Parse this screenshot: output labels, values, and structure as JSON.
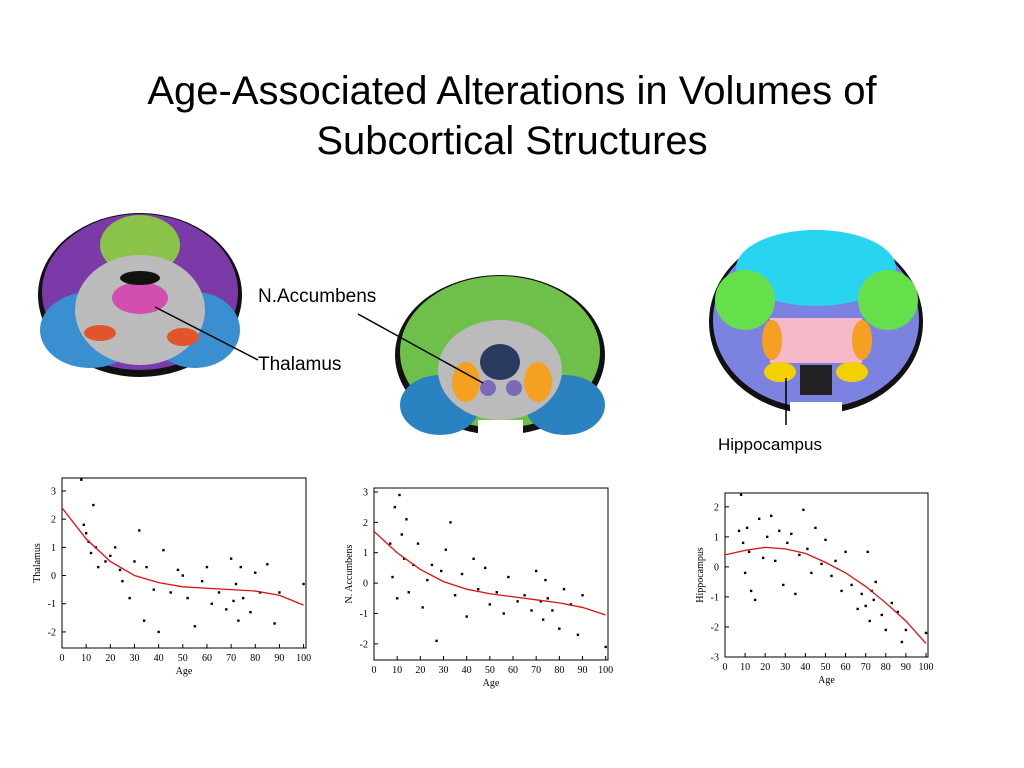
{
  "title": "Age-Associated Alterations in Volumes of Subcortical Structures",
  "annotations": {
    "n_accumbens": "N.Accumbens",
    "thalamus": "Thalamus",
    "hippocampus": "Hippocampus"
  },
  "chart_data": [
    {
      "type": "scatter",
      "xlabel": "Age",
      "ylabel": "Thalamus",
      "xlim": [
        0,
        101
      ],
      "ylim": [
        -2.57,
        3.46
      ],
      "xticks": [
        0,
        10,
        20,
        30,
        40,
        50,
        60,
        70,
        80,
        90,
        100
      ],
      "yticks": [
        -2,
        -1,
        0,
        1,
        2,
        3
      ],
      "series": [
        {
          "style": "marker",
          "color": "#000000",
          "x": [
            8,
            9,
            10,
            11,
            12,
            13,
            14,
            15,
            18,
            20,
            22,
            24,
            25,
            28,
            30,
            32,
            34,
            35,
            38,
            40,
            42,
            45,
            48,
            50,
            52,
            55,
            58,
            60,
            62,
            65,
            68,
            70,
            71,
            72,
            73,
            74,
            75,
            78,
            80,
            82,
            85,
            88,
            90,
            100
          ],
          "values": [
            3.4,
            1.8,
            1.5,
            1.2,
            0.8,
            2.5,
            1.0,
            0.3,
            0.5,
            0.7,
            1.0,
            0.2,
            -0.2,
            -0.8,
            0.5,
            1.6,
            -1.6,
            0.3,
            -0.5,
            -2.0,
            0.9,
            -0.6,
            0.2,
            0,
            -0.8,
            -1.8,
            -0.2,
            0.3,
            -1.0,
            -0.6,
            -1.2,
            0.6,
            -0.9,
            -0.3,
            -1.6,
            0.3,
            -0.8,
            -1.3,
            0.1,
            -0.6,
            0.4,
            -1.7,
            -0.6,
            -0.3
          ]
        },
        {
          "style": "line",
          "color": "#dd1111",
          "x": [
            0,
            10,
            20,
            30,
            40,
            50,
            60,
            70,
            80,
            90,
            100
          ],
          "values": [
            2.4,
            1.3,
            0.5,
            0,
            -0.25,
            -0.4,
            -0.45,
            -0.5,
            -0.55,
            -0.7,
            -1.05
          ]
        }
      ]
    },
    {
      "type": "scatter",
      "xlabel": "Age",
      "ylabel": "N. Accumbens",
      "xlim": [
        0,
        101
      ],
      "ylim": [
        -2.53,
        3.13
      ],
      "xticks": [
        0,
        10,
        20,
        30,
        40,
        50,
        60,
        70,
        80,
        90,
        100
      ],
      "yticks": [
        -2,
        -1,
        0,
        1,
        2,
        3
      ],
      "series": [
        {
          "style": "marker",
          "color": "#000000",
          "x": [
            7,
            8,
            9,
            10,
            11,
            12,
            13,
            14,
            15,
            17,
            19,
            21,
            23,
            25,
            27,
            29,
            31,
            33,
            35,
            38,
            40,
            43,
            45,
            48,
            50,
            53,
            56,
            58,
            62,
            65,
            68,
            70,
            72,
            73,
            74,
            75,
            77,
            80,
            82,
            85,
            88,
            90,
            100
          ],
          "values": [
            1.3,
            0.2,
            2.5,
            -0.5,
            2.9,
            1.6,
            0.8,
            2.1,
            -0.3,
            0.6,
            1.3,
            -0.8,
            0.1,
            0.6,
            -1.9,
            0.4,
            1.1,
            2.0,
            -0.4,
            0.3,
            -1.1,
            0.8,
            -0.2,
            0.5,
            -0.7,
            -0.3,
            -1.0,
            0.2,
            -0.6,
            -0.4,
            -0.9,
            0.4,
            -0.6,
            -1.2,
            0.1,
            -0.5,
            -0.9,
            -1.5,
            -0.2,
            -0.7,
            -1.7,
            -0.4,
            -2.1
          ]
        },
        {
          "style": "line",
          "color": "#dd1111",
          "x": [
            0,
            10,
            20,
            30,
            40,
            50,
            60,
            70,
            80,
            90,
            100
          ],
          "values": [
            1.7,
            1.0,
            0.45,
            0.05,
            -0.2,
            -0.35,
            -0.45,
            -0.55,
            -0.65,
            -0.8,
            -1.05
          ]
        }
      ]
    },
    {
      "type": "scatter",
      "xlabel": "Age",
      "ylabel": "Hippocampus",
      "xlim": [
        0,
        101
      ],
      "ylim": [
        -3,
        2.46
      ],
      "xticks": [
        0,
        10,
        20,
        30,
        40,
        50,
        60,
        70,
        80,
        90,
        100
      ],
      "yticks": [
        -3,
        -2,
        -1,
        0,
        1,
        2
      ],
      "series": [
        {
          "style": "marker",
          "color": "#000000",
          "x": [
            7,
            8,
            9,
            10,
            11,
            12,
            13,
            15,
            17,
            19,
            21,
            23,
            25,
            27,
            29,
            31,
            33,
            35,
            37,
            39,
            41,
            43,
            45,
            48,
            50,
            53,
            55,
            58,
            60,
            63,
            66,
            68,
            70,
            71,
            72,
            73,
            74,
            75,
            78,
            80,
            83,
            86,
            88,
            90,
            100
          ],
          "values": [
            1.2,
            2.4,
            0.8,
            -0.2,
            1.3,
            0.5,
            -0.8,
            -1.1,
            1.6,
            0.3,
            1.0,
            1.7,
            0.2,
            1.2,
            -0.6,
            0.8,
            1.1,
            -0.9,
            0.4,
            1.9,
            0.6,
            -0.2,
            1.3,
            0.1,
            0.9,
            -0.3,
            0.2,
            -0.8,
            0.5,
            -0.6,
            -1.4,
            -0.9,
            -1.3,
            0.5,
            -1.8,
            -0.8,
            -1.1,
            -0.5,
            -1.6,
            -2.1,
            -1.2,
            -1.5,
            -2.5,
            -2.1,
            -2.2
          ]
        },
        {
          "style": "line",
          "color": "#dd1111",
          "x": [
            0,
            10,
            20,
            30,
            40,
            50,
            60,
            70,
            80,
            90,
            100
          ],
          "values": [
            0.4,
            0.55,
            0.65,
            0.6,
            0.45,
            0.15,
            -0.2,
            -0.65,
            -1.2,
            -1.8,
            -2.55
          ]
        }
      ]
    }
  ]
}
